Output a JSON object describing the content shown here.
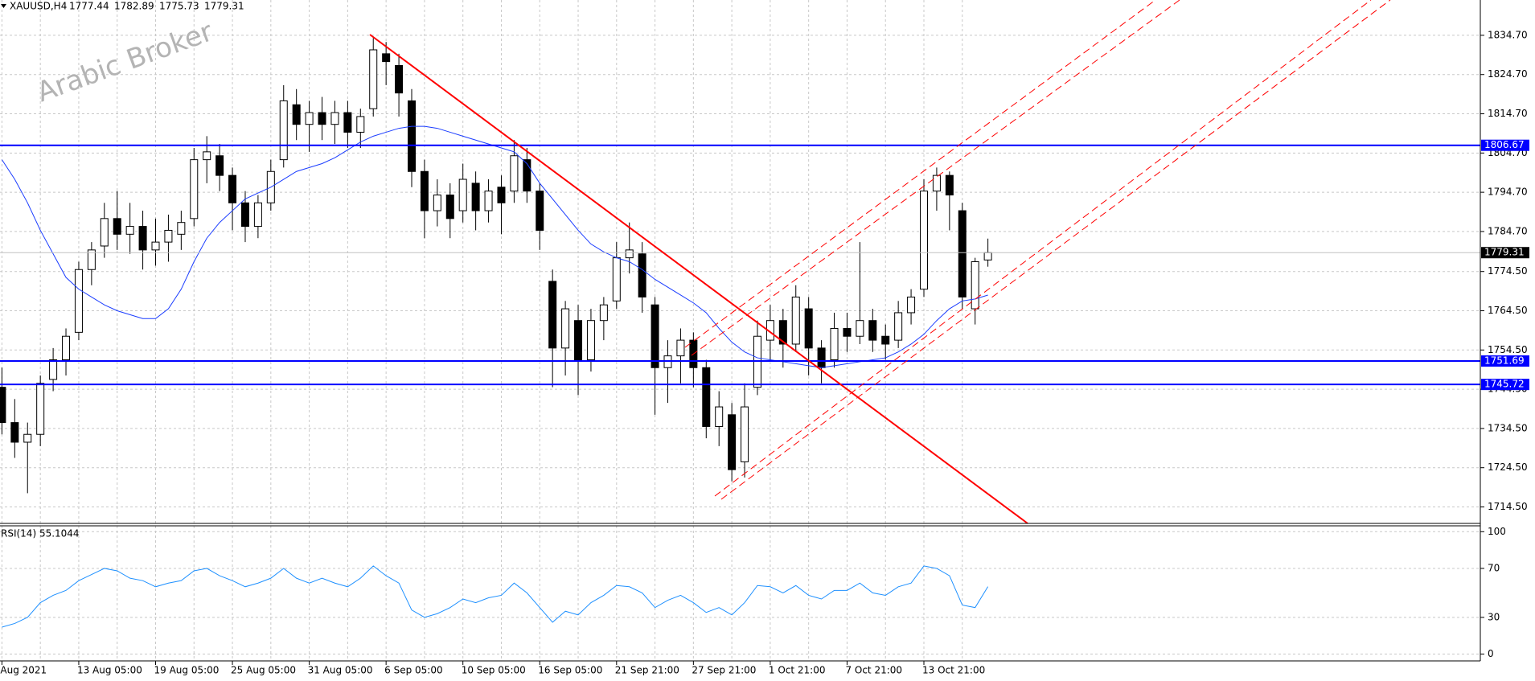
{
  "header": {
    "symbol": "XAUUSD,H4",
    "ohlc": [
      1777.44,
      1782.89,
      1775.73,
      1779.31
    ]
  },
  "watermark": "Arabic Broker",
  "chart_data": [
    {
      "type": "candlestick",
      "categories": [
        "Aug 2021",
        null,
        null,
        null,
        null,
        null,
        "13 Aug 05:00",
        null,
        null,
        null,
        null,
        null,
        "19 Aug 05:00",
        null,
        null,
        null,
        null,
        null,
        "25 Aug 05:00",
        null,
        null,
        null,
        null,
        null,
        "31 Aug 05:00",
        null,
        null,
        null,
        null,
        null,
        "6 Sep 05:00",
        null,
        null,
        null,
        null,
        null,
        "10 Sep 05:00",
        null,
        null,
        null,
        null,
        null,
        "16 Sep 05:00",
        null,
        null,
        null,
        null,
        null,
        "21 Sep 21:00",
        null,
        null,
        null,
        null,
        null,
        "27 Sep 21:00",
        null,
        null,
        null,
        null,
        null,
        "1 Oct 21:00",
        null,
        null,
        null,
        null,
        null,
        "7 Oct 21:00",
        null,
        null,
        null,
        null,
        null,
        "13 Oct 21:00",
        null,
        null,
        null,
        null,
        null
      ],
      "open": [
        1745,
        1736,
        1731,
        1733,
        1747,
        1752,
        1759,
        1775,
        1781,
        1788,
        1784,
        1786,
        1780,
        1782,
        1784,
        1788,
        1803,
        1804,
        1799,
        1792,
        1786,
        1792,
        1803,
        1817,
        1812,
        1815,
        1812,
        1815,
        1810,
        1816,
        1830,
        1827,
        1818,
        1800,
        1790,
        1794,
        1790,
        1797,
        1790,
        1796,
        1795,
        1803,
        1795,
        1772,
        1755,
        1762,
        1752,
        1762,
        1767,
        1778,
        1779,
        1766,
        1750,
        1753,
        1757,
        1750,
        1735,
        1738,
        1726,
        1745,
        1757,
        1762,
        1756,
        1765,
        1755,
        1752,
        1760,
        1758,
        1762,
        1758,
        1757,
        1764,
        1770,
        1795,
        1799,
        1790,
        1765,
        1777.44
      ],
      "high": [
        1750,
        1742,
        1736,
        1748,
        1755,
        1760,
        1777,
        1782,
        1792,
        1795,
        1792,
        1790,
        1788,
        1789,
        1790,
        1806,
        1809,
        1807,
        1801,
        1795,
        1794,
        1803,
        1822,
        1821,
        1818,
        1819,
        1818,
        1818,
        1816,
        1834,
        1833,
        1830,
        1821,
        1803,
        1798,
        1797,
        1802,
        1800,
        1798,
        1799,
        1808,
        1806,
        1797,
        1775,
        1767,
        1766,
        1765,
        1768,
        1782,
        1787,
        1782,
        1768,
        1757,
        1760,
        1759,
        1752,
        1744,
        1741,
        1746,
        1762,
        1766,
        1765,
        1771,
        1768,
        1757,
        1764,
        1764,
        1782,
        1765,
        1761,
        1767,
        1770,
        1798,
        1801,
        1800,
        1792,
        1778,
        1782.89
      ],
      "low": [
        1733,
        1727,
        1718,
        1730,
        1744,
        1748,
        1757,
        1771,
        1778,
        1780,
        1779,
        1775,
        1776,
        1777,
        1780,
        1786,
        1797,
        1795,
        1785,
        1782,
        1783,
        1790,
        1801,
        1808,
        1805,
        1808,
        1807,
        1806,
        1806,
        1814,
        1822,
        1814,
        1796,
        1783,
        1786,
        1783,
        1787,
        1785,
        1787,
        1784,
        1792,
        1792,
        1780,
        1745,
        1748,
        1743,
        1749,
        1757,
        1765,
        1774,
        1764,
        1738,
        1741,
        1746,
        1745,
        1732,
        1730,
        1721,
        1722,
        1743,
        1752,
        1750,
        1754,
        1748,
        1746,
        1750,
        1754,
        1756,
        1754,
        1752,
        1755,
        1761,
        1768,
        1790,
        1785,
        1765,
        1761,
        1775.73
      ],
      "close": [
        1736,
        1731,
        1733,
        1746,
        1752,
        1758,
        1775,
        1780,
        1788,
        1784,
        1786,
        1780,
        1782,
        1785,
        1787,
        1803,
        1805,
        1799,
        1792,
        1786,
        1792,
        1800,
        1818,
        1812,
        1815,
        1812,
        1815,
        1810,
        1814,
        1831,
        1828,
        1820,
        1800,
        1790,
        1794,
        1788,
        1798,
        1790,
        1795,
        1792,
        1804,
        1795,
        1785,
        1755,
        1765,
        1752,
        1762,
        1766,
        1778,
        1780,
        1768,
        1750,
        1753,
        1757,
        1750,
        1735,
        1740,
        1724,
        1740,
        1758,
        1762,
        1756,
        1768,
        1755,
        1750,
        1760,
        1758,
        1762,
        1757,
        1756,
        1764,
        1768,
        1795,
        1799,
        1794,
        1768,
        1777,
        1779.31
      ],
      "up_color": "#ffffff",
      "down_color": "#000000",
      "moving_average": {
        "color": "#1a3cff",
        "values": [
          1803,
          1798,
          1792,
          1785,
          1779,
          1773,
          1770,
          1768,
          1766,
          1764.5,
          1763.5,
          1762.5,
          1762.5,
          1765,
          1770,
          1777,
          1783,
          1787,
          1790,
          1793,
          1794.5,
          1796,
          1798,
          1800,
          1801,
          1802,
          1803.5,
          1805.5,
          1807.5,
          1809,
          1810,
          1811,
          1811.5,
          1811.5,
          1811,
          1810,
          1809,
          1808,
          1807,
          1806,
          1805,
          1802,
          1797,
          1793,
          1789,
          1785,
          1781.5,
          1779.5,
          1778,
          1777,
          1775,
          1772.5,
          1770.5,
          1768.5,
          1766.5,
          1764,
          1760,
          1756.5,
          1754,
          1752.5,
          1752,
          1751.5,
          1751,
          1750.5,
          1750,
          1750.5,
          1751,
          1751.5,
          1752,
          1752.5,
          1754,
          1756,
          1758.5,
          1762,
          1765,
          1767,
          1767.5,
          1768.5
        ]
      },
      "hlines": [
        1806.67,
        1751.69,
        1745.72
      ],
      "hline_color": "#0000ff",
      "ylim": [
        1710.3,
        1843.7
      ],
      "yticks": [
        {
          "value": 1834.7,
          "label": "1834.70"
        },
        {
          "value": 1824.7,
          "label": "1824.70"
        },
        {
          "value": 1814.7,
          "label": "1814.70"
        },
        {
          "value": 1804.7,
          "label": "1804.70"
        },
        {
          "value": 1794.7,
          "label": "1794.70"
        },
        {
          "value": 1784.7,
          "label": "1784.70"
        },
        {
          "value": 1774.5,
          "label": "1774.50"
        },
        {
          "value": 1764.5,
          "label": "1764.50"
        },
        {
          "value": 1754.5,
          "label": "1754.50"
        },
        {
          "value": 1744.5,
          "label": "1744.50"
        },
        {
          "value": 1734.5,
          "label": "1734.50"
        },
        {
          "value": 1724.5,
          "label": "1724.50"
        },
        {
          "value": 1714.5,
          "label": "1714.50"
        }
      ],
      "grid": true
    },
    {
      "type": "line",
      "title": "RSI(14) 55.1044",
      "color": "#1e90ff",
      "values": [
        22,
        25,
        30,
        42,
        48,
        52,
        60,
        65,
        70,
        68,
        62,
        60,
        55,
        58,
        60,
        68,
        70,
        64,
        60,
        55,
        58,
        62,
        70,
        62,
        58,
        62,
        58,
        55,
        62,
        72,
        64,
        58,
        36,
        30,
        33,
        38,
        45,
        42,
        46,
        48,
        58,
        50,
        38,
        26,
        35,
        32,
        42,
        48,
        56,
        55,
        50,
        38,
        44,
        48,
        42,
        34,
        38,
        32,
        42,
        56,
        55,
        50,
        56,
        48,
        45,
        52,
        52,
        58,
        50,
        48,
        55,
        58,
        72,
        70,
        64,
        40,
        38,
        55.1044
      ],
      "ylim": [
        -5.6,
        104.8
      ],
      "yticks": [
        0,
        30,
        70,
        100
      ],
      "grid": true
    }
  ]
}
